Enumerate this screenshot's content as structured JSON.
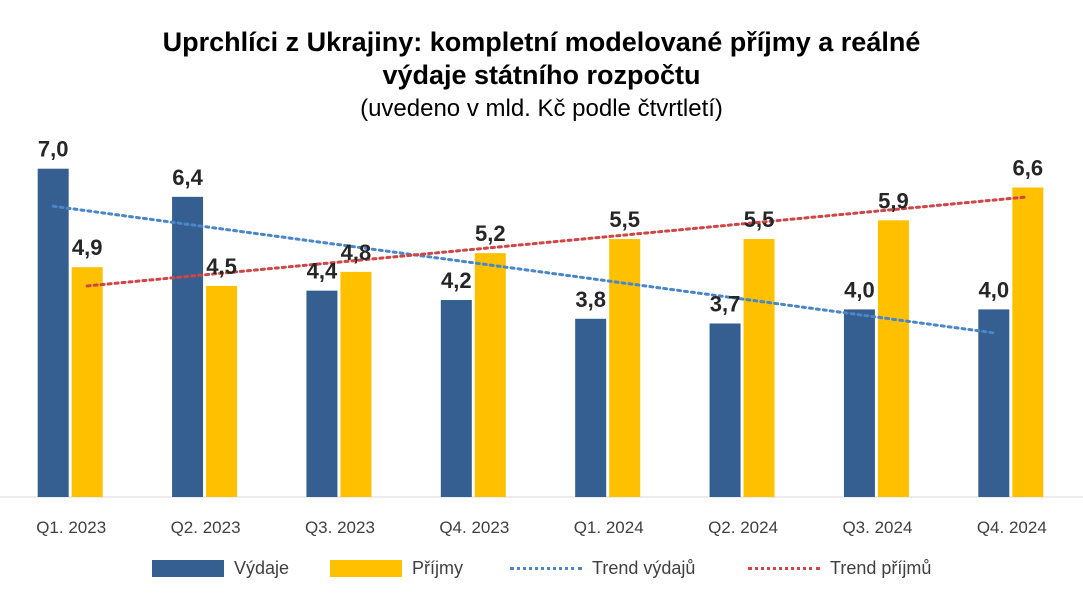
{
  "chart_data": {
    "type": "bar",
    "title_line1": "Uprchlíci z Ukrajiny: kompletní modelované příjmy a reálné",
    "title_line2": "výdaje státního rozpočtu",
    "subtitle": "(uvedeno v mld. Kč podle čtvrtletí)",
    "categories": [
      "Q1. 2023",
      "Q2. 2023",
      "Q3. 2023",
      "Q4. 2023",
      "Q1. 2024",
      "Q2. 2024",
      "Q3. 2024",
      "Q4. 2024"
    ],
    "series": [
      {
        "name": "Výdaje",
        "color": "#365F91",
        "values": [
          7.0,
          6.4,
          4.4,
          4.2,
          3.8,
          3.7,
          4.0,
          4.0
        ],
        "labels": [
          "7,0",
          "6,4",
          "4,4",
          "4,2",
          "3,8",
          "3,7",
          "4,0",
          "4,0"
        ]
      },
      {
        "name": "Příjmy",
        "color": "#FFC000",
        "values": [
          4.9,
          4.5,
          4.8,
          5.2,
          5.5,
          5.5,
          5.9,
          6.6
        ],
        "labels": [
          "4,9",
          "4,5",
          "4,8",
          "5,2",
          "5,5",
          "5,5",
          "5,9",
          "6,6"
        ]
      }
    ],
    "trends": [
      {
        "name": "Trend výdajů",
        "color": "#4A86C8",
        "start": 6.2,
        "end": 3.5
      },
      {
        "name": "Trend příjmů",
        "color": "#D04545",
        "start": 4.5,
        "end": 6.4
      }
    ],
    "ylim": [
      0,
      7.2
    ],
    "grid": false,
    "legend_position": "bottom"
  }
}
